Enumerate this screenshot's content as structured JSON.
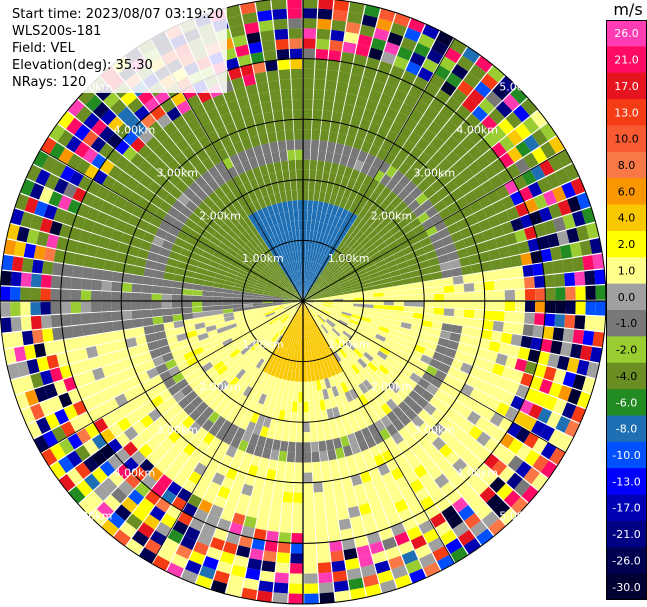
{
  "header": {
    "start_time": "Start time: 2023/08/07 03:19:20",
    "instrument": "WLS200s-181",
    "field": "Field: VEL",
    "elevation": "Elevation(deg): 35.30",
    "nrays": "NRays: 120"
  },
  "colorbar": {
    "title": "m/s",
    "bins": [
      {
        "label": "26.0",
        "color": "#ff3cb4"
      },
      {
        "label": "21.0",
        "color": "#ff0a64"
      },
      {
        "label": "17.0",
        "color": "#e6141e"
      },
      {
        "label": "13.0",
        "color": "#f53c14"
      },
      {
        "label": "10.0",
        "color": "#fa5a32"
      },
      {
        "label": "8.0",
        "color": "#fa7846"
      },
      {
        "label": "6.0",
        "color": "#fa9600"
      },
      {
        "label": "4.0",
        "color": "#fac800"
      },
      {
        "label": "2.0",
        "color": "#ffff00"
      },
      {
        "label": "1.0",
        "color": "#ffff8c"
      },
      {
        "label": "0.0",
        "color": "#a0a0a0"
      },
      {
        "label": "-1.0",
        "color": "#787878"
      },
      {
        "label": "-2.0",
        "color": "#9acd32"
      },
      {
        "label": "-4.0",
        "color": "#6b8e23"
      },
      {
        "label": "-6.0",
        "color": "#228b22"
      },
      {
        "label": "-8.0",
        "color": "#1e6fb4"
      },
      {
        "label": "-10.0",
        "color": "#0050ff"
      },
      {
        "label": "-13.0",
        "color": "#0000ff"
      },
      {
        "label": "-17.0",
        "color": "#0000b4"
      },
      {
        "label": "-21.0",
        "color": "#000082"
      },
      {
        "label": "-26.0",
        "color": "#000050"
      },
      {
        "label": "-30.0",
        "color": "#000032"
      }
    ]
  },
  "chart_data": {
    "type": "heatmap",
    "projection": "polar (PPI)",
    "field": "VEL",
    "units": "m/s",
    "vmin": -30.0,
    "vmax": 30.0,
    "max_range_km": 5.0,
    "ring_labels": [
      "1.00km",
      "2.00km",
      "3.00km",
      "4.00km",
      "5.00km"
    ],
    "n_rays": 120,
    "gates_per_ray": 30,
    "pattern_description_values": {
      "north_core_value": -7.0,
      "north_band_value": -3.0,
      "south_core_value": 5.0,
      "south_band_value": 1.5,
      "transition_value": -0.5,
      "outer_noise_range": [
        -30.0,
        30.0
      ]
    }
  }
}
